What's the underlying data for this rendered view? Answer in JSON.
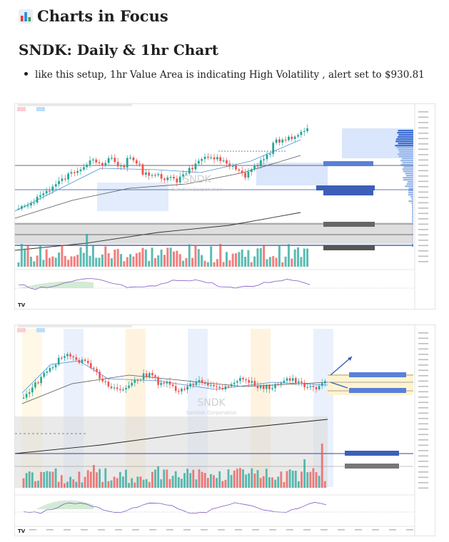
{
  "page": {
    "heading": "Charts in Focus",
    "heading_icon": "bar-chart-icon",
    "subheading": "SNDK: Daily & 1hr Chart",
    "bullet": "like this setup, 1hr Value Area is indicating High Volatility , alert set to $930.81"
  },
  "chart1": {
    "watermark_ticker": "SNDK",
    "watermark_name": "Sandisk Corporation",
    "tv_logo": "TV"
  },
  "chart2": {
    "watermark_ticker": "SNDK",
    "watermark_name": "Sandisk Corporation",
    "tv_logo": "TV"
  },
  "colors": {
    "up": "#26a69a",
    "down": "#ef5350",
    "value_area": "#cfe0fb",
    "gray_zone": "#d6d6d6",
    "marker": "#2962ff"
  }
}
